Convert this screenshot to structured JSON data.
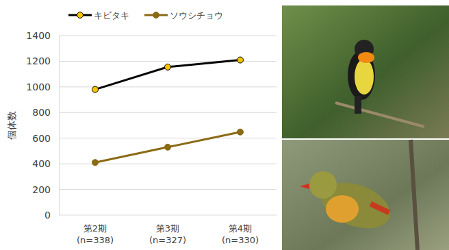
{
  "chart_data": {
    "type": "line",
    "y_label": "個体数",
    "categories": [
      "第2期\n(n=338)",
      "第3期\n(n=327)",
      "第4期\n(n=330)"
    ],
    "series": [
      {
        "name": "キビタキ",
        "color": "#000000",
        "marker": "circle",
        "values": [
          980,
          1155,
          1210
        ]
      },
      {
        "name": "ソウシチョウ",
        "color": "#8a6a14",
        "marker": "circle",
        "values": [
          410,
          530,
          648
        ]
      }
    ],
    "ylim": [
      0,
      1400
    ],
    "yticks": [
      0,
      200,
      400,
      600,
      800,
      1000,
      1200,
      1400
    ],
    "grid": true,
    "legend": "top"
  }
}
